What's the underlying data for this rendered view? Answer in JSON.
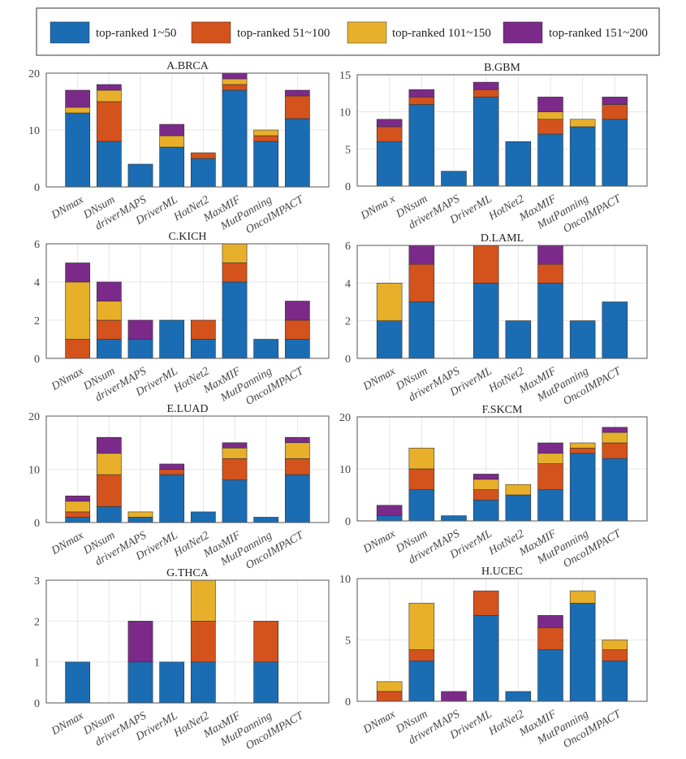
{
  "legend": {
    "entries": [
      {
        "label": "top-ranked 1~50",
        "color": "#1a6db3"
      },
      {
        "label": "top-ranked 51~100",
        "color": "#d4521c"
      },
      {
        "label": "top-ranked 101~150",
        "color": "#e8b02a"
      },
      {
        "label": "top-ranked 151~200",
        "color": "#7b2a8a"
      }
    ]
  },
  "chart_data": [
    {
      "type": "bar",
      "stacked": true,
      "title": "A.BRCA",
      "categories": [
        "DNmax",
        "DNsum",
        "driverMAPS",
        "DriverML",
        "HotNet2",
        "MaxMIF",
        "MutPanning",
        "OncoIMPACT"
      ],
      "ylim": [
        0,
        20
      ],
      "yticks": [
        0,
        10,
        20
      ],
      "grid": true,
      "series": [
        {
          "name": "top-ranked 1~50",
          "values": [
            13,
            8,
            4,
            7,
            5,
            17,
            8,
            12
          ]
        },
        {
          "name": "top-ranked 51~100",
          "values": [
            0,
            7,
            0,
            0,
            1,
            1,
            1,
            4
          ]
        },
        {
          "name": "top-ranked 101~150",
          "values": [
            1,
            2,
            0,
            2,
            0,
            1,
            1,
            0
          ]
        },
        {
          "name": "top-ranked 151~200",
          "values": [
            3,
            1,
            0,
            2,
            0,
            1,
            0,
            1
          ]
        }
      ]
    },
    {
      "type": "bar",
      "stacked": true,
      "title": "B.GBM",
      "categories": [
        "DNma x",
        "DNsum",
        "driverMAPS",
        "DriverML",
        "HotNet2",
        "MaxMIF",
        "MutPanning",
        "OncoIMPACT"
      ],
      "ylim": [
        0,
        15
      ],
      "yticks": [
        0,
        5,
        10,
        15
      ],
      "grid": true,
      "series": [
        {
          "name": "top-ranked 1~50",
          "values": [
            6,
            11,
            2,
            12,
            6,
            7,
            8,
            9
          ]
        },
        {
          "name": "top-ranked 51~100",
          "values": [
            2,
            1,
            0,
            1,
            0,
            2,
            0,
            2
          ]
        },
        {
          "name": "top-ranked 101~150",
          "values": [
            0,
            0,
            0,
            0,
            0,
            1,
            1,
            0
          ]
        },
        {
          "name": "top-ranked 151~200",
          "values": [
            1,
            1,
            0,
            1,
            0,
            2,
            0,
            1
          ]
        }
      ]
    },
    {
      "type": "bar",
      "stacked": true,
      "title": "C.KICH",
      "categories": [
        "DNmax",
        "DNsum",
        "driverMAPS",
        "DriverML",
        "HotNet2",
        "MaxMIF",
        "MutPanning",
        "OncoIMPACT"
      ],
      "ylim": [
        0,
        6
      ],
      "yticks": [
        0,
        2,
        4,
        6
      ],
      "grid": true,
      "series": [
        {
          "name": "top-ranked 1~50",
          "values": [
            0,
            1,
            1,
            2,
            1,
            4,
            1,
            1
          ]
        },
        {
          "name": "top-ranked 51~100",
          "values": [
            1,
            1,
            0,
            0,
            1,
            1,
            0,
            1
          ]
        },
        {
          "name": "top-ranked 101~150",
          "values": [
            3,
            1,
            0,
            0,
            0,
            1,
            0,
            0
          ]
        },
        {
          "name": "top-ranked 151~200",
          "values": [
            1,
            1,
            1,
            0,
            0,
            0,
            0,
            1
          ]
        }
      ]
    },
    {
      "type": "bar",
      "stacked": true,
      "title": "D.LAML",
      "categories": [
        "DNmax",
        "DNsum",
        "driverMAPS",
        "DriverML",
        "HotNet2",
        "MaxMIF",
        "MutPanning",
        "OncoIMPACT"
      ],
      "ylim": [
        0,
        6
      ],
      "yticks": [
        0,
        2,
        4,
        6
      ],
      "grid": true,
      "series": [
        {
          "name": "top-ranked 1~50",
          "values": [
            2,
            3,
            0,
            4,
            2,
            4,
            2,
            3
          ]
        },
        {
          "name": "top-ranked 51~100",
          "values": [
            0,
            2,
            0,
            2,
            0,
            1,
            0,
            0
          ]
        },
        {
          "name": "top-ranked 101~150",
          "values": [
            2,
            0,
            0,
            0,
            0,
            0,
            0,
            0
          ]
        },
        {
          "name": "top-ranked 151~200",
          "values": [
            0,
            1,
            0,
            0,
            0,
            1,
            0,
            0
          ]
        }
      ]
    },
    {
      "type": "bar",
      "stacked": true,
      "title": "E.LUAD",
      "categories": [
        "DNmax",
        "DNsum",
        "driverMAPS",
        "DriverML",
        "HotNet2",
        "MaxMIF",
        "MutPanning",
        "OncoIMPACT"
      ],
      "ylim": [
        0,
        20
      ],
      "yticks": [
        0,
        10,
        20
      ],
      "grid": true,
      "series": [
        {
          "name": "top-ranked 1~50",
          "values": [
            1,
            3,
            1,
            9,
            2,
            8,
            1,
            9
          ]
        },
        {
          "name": "top-ranked 51~100",
          "values": [
            1,
            6,
            0,
            1,
            0,
            4,
            0,
            3
          ]
        },
        {
          "name": "top-ranked 101~150",
          "values": [
            2,
            4,
            1,
            0,
            0,
            2,
            0,
            3
          ]
        },
        {
          "name": "top-ranked 151~200",
          "values": [
            1,
            3,
            0,
            1,
            0,
            1,
            0,
            1
          ]
        }
      ]
    },
    {
      "type": "bar",
      "stacked": true,
      "title": "F.SKCM",
      "categories": [
        "DNmax",
        "DNsum",
        "driverMAPS",
        "DriverML",
        "HotNet2",
        "MaxMIF",
        "MutPanning",
        "OncoIMPACT"
      ],
      "ylim": [
        0,
        20
      ],
      "yticks": [
        0,
        10,
        20
      ],
      "grid": true,
      "series": [
        {
          "name": "top-ranked 1~50",
          "values": [
            1,
            6,
            1,
            4,
            5,
            6,
            13,
            12
          ]
        },
        {
          "name": "top-ranked 51~100",
          "values": [
            0,
            4,
            0,
            2,
            0,
            5,
            1,
            3
          ]
        },
        {
          "name": "top-ranked 101~150",
          "values": [
            0,
            4,
            0,
            2,
            2,
            2,
            1,
            2
          ]
        },
        {
          "name": "top-ranked 151~200",
          "values": [
            2,
            0,
            0,
            1,
            0,
            2,
            0,
            1
          ]
        }
      ]
    },
    {
      "type": "bar",
      "stacked": true,
      "title": "G.THCA",
      "categories": [
        "DNmax",
        "DNsum",
        "driverMAPS",
        "DriverML",
        "HotNet2",
        "MaxMIF",
        "MutPanning",
        "OncoIMPACT"
      ],
      "ylim": [
        0,
        3
      ],
      "yticks": [
        0,
        1,
        2,
        3
      ],
      "grid": true,
      "series": [
        {
          "name": "top-ranked 1~50",
          "values": [
            1,
            0,
            1,
            1,
            1,
            0,
            1,
            0
          ]
        },
        {
          "name": "top-ranked 51~100",
          "values": [
            0,
            0,
            0,
            0,
            1,
            0,
            1,
            0
          ]
        },
        {
          "name": "top-ranked 101~150",
          "values": [
            0,
            0,
            0,
            0,
            1,
            0,
            0,
            0
          ]
        },
        {
          "name": "top-ranked 151~200",
          "values": [
            0,
            0,
            1,
            0,
            0,
            0,
            0,
            0
          ]
        }
      ]
    },
    {
      "type": "bar",
      "stacked": true,
      "title": "H.UCEC",
      "categories": [
        "DNmax",
        "DNsum",
        "driverMAPS",
        "DriverML",
        "HotNet2",
        "MaxMIF",
        "MutPanning",
        "OncoIMPACT"
      ],
      "ylim": [
        0,
        10
      ],
      "yticks": [
        0,
        5,
        10
      ],
      "grid": true,
      "series": [
        {
          "name": "top-ranked 1~50",
          "values": [
            0,
            3.3,
            0,
            7,
            0.8,
            4.2,
            8,
            3.3
          ]
        },
        {
          "name": "top-ranked 51~100",
          "values": [
            0.8,
            0.9,
            0,
            2,
            0,
            1.8,
            0,
            0.9
          ]
        },
        {
          "name": "top-ranked 101~150",
          "values": [
            0.8,
            3.8,
            0,
            0,
            0,
            0,
            1,
            0.8
          ]
        },
        {
          "name": "top-ranked 151~200",
          "values": [
            0,
            0,
            0.8,
            0,
            0,
            1,
            0,
            0
          ]
        }
      ]
    }
  ]
}
